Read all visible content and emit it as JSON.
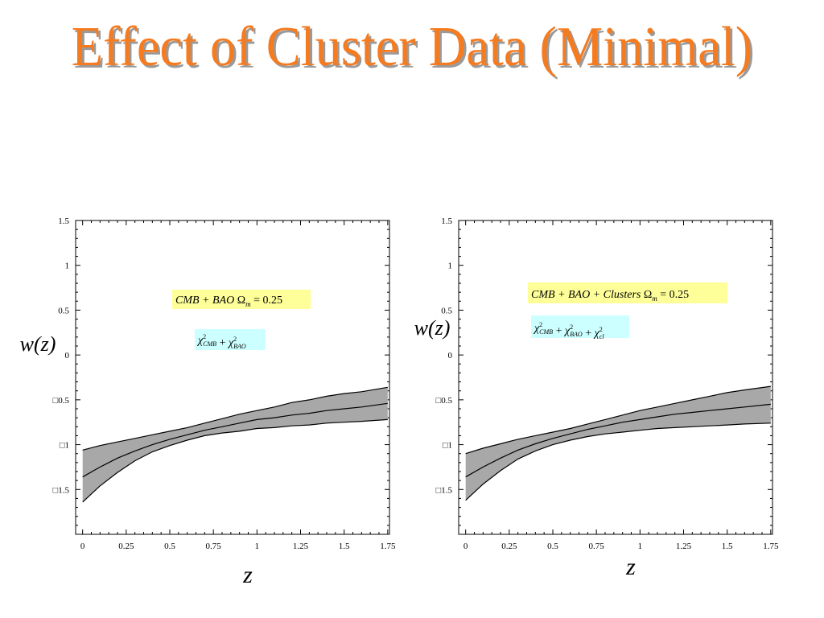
{
  "slide": {
    "title": "Effect of Cluster Data (Minimal)"
  },
  "colors": {
    "title": "#f57b20",
    "title_shadow": "#9a9a9a",
    "band_fill": "#a8a8a8",
    "label_yellow": "#ffff99",
    "label_cyan": "#ccffff"
  },
  "chart_data": [
    {
      "type": "area",
      "xlabel": "z",
      "ylabel": "w(z)",
      "xlim": [
        -0.04,
        1.76
      ],
      "ylim": [
        -2.0,
        1.5
      ],
      "xticks": [
        0,
        0.25,
        0.5,
        0.75,
        1,
        1.25,
        1.5,
        1.75
      ],
      "xtick_labels": [
        "0",
        "0.25",
        "0.5",
        "0.75",
        "1",
        "1.25",
        "1.5",
        "1.75"
      ],
      "yticks": [
        1.5,
        1,
        0.5,
        0,
        -0.5,
        -1,
        -1.5
      ],
      "ytick_labels": [
        "1.5",
        "1",
        "0.5",
        "0",
        "□0.5",
        "□1",
        "□1.5"
      ],
      "grid": false,
      "annotations": {
        "prior": {
          "main": "CMB + BAO",
          "omega": "Ω",
          "omega_sub": "m",
          "value": " = 0.25"
        },
        "chi": [
          {
            "sym": "χ",
            "sup": "2",
            "sub": "CMB"
          },
          {
            "sym": "χ",
            "sup": "2",
            "sub": "BAO"
          }
        ]
      },
      "x": [
        0,
        0.1,
        0.2,
        0.3,
        0.4,
        0.5,
        0.6,
        0.7,
        0.8,
        0.9,
        1.0,
        1.1,
        1.2,
        1.3,
        1.4,
        1.5,
        1.6,
        1.75
      ],
      "series": [
        {
          "role": "upper",
          "values": [
            -1.06,
            -1.01,
            -0.97,
            -0.93,
            -0.89,
            -0.85,
            -0.81,
            -0.76,
            -0.71,
            -0.66,
            -0.62,
            -0.58,
            -0.53,
            -0.5,
            -0.46,
            -0.43,
            -0.41,
            -0.36
          ]
        },
        {
          "role": "best-fit",
          "values": [
            -1.36,
            -1.25,
            -1.15,
            -1.07,
            -1.0,
            -0.94,
            -0.89,
            -0.84,
            -0.8,
            -0.76,
            -0.72,
            -0.7,
            -0.67,
            -0.65,
            -0.62,
            -0.6,
            -0.58,
            -0.54
          ]
        },
        {
          "role": "lower",
          "values": [
            -1.64,
            -1.46,
            -1.31,
            -1.18,
            -1.08,
            -1.01,
            -0.95,
            -0.9,
            -0.87,
            -0.85,
            -0.82,
            -0.81,
            -0.79,
            -0.78,
            -0.76,
            -0.75,
            -0.74,
            -0.72
          ]
        }
      ]
    },
    {
      "type": "area",
      "xlabel": "z",
      "ylabel": "w(z)",
      "xlim": [
        -0.04,
        1.76
      ],
      "ylim": [
        -2.0,
        1.5
      ],
      "xticks": [
        0,
        0.25,
        0.5,
        0.75,
        1,
        1.25,
        1.5,
        1.75
      ],
      "xtick_labels": [
        "0",
        "0.25",
        "0.5",
        "0.75",
        "1",
        "1.25",
        "1.5",
        "1.75"
      ],
      "yticks": [
        1.5,
        1,
        0.5,
        0,
        -0.5,
        -1,
        -1.5
      ],
      "ytick_labels": [
        "1.5",
        "1",
        "0.5",
        "0",
        "□0.5",
        "□1",
        "□1.5"
      ],
      "grid": false,
      "annotations": {
        "prior": {
          "main": "CMB + BAO + Clusters",
          "omega": "Ω",
          "omega_sub": "m",
          "value": " = 0.25"
        },
        "chi": [
          {
            "sym": "χ",
            "sup": "2",
            "sub": "CMB"
          },
          {
            "sym": "χ",
            "sup": "2",
            "sub": "BAO"
          },
          {
            "sym": "χ",
            "sup": "2",
            "sub": "cl"
          }
        ]
      },
      "x": [
        0,
        0.1,
        0.2,
        0.3,
        0.4,
        0.5,
        0.6,
        0.7,
        0.8,
        0.9,
        1.0,
        1.1,
        1.2,
        1.3,
        1.4,
        1.5,
        1.6,
        1.75
      ],
      "series": [
        {
          "role": "upper",
          "values": [
            -1.1,
            -1.04,
            -0.99,
            -0.94,
            -0.9,
            -0.86,
            -0.82,
            -0.77,
            -0.72,
            -0.67,
            -0.62,
            -0.58,
            -0.54,
            -0.5,
            -0.46,
            -0.42,
            -0.39,
            -0.35
          ]
        },
        {
          "role": "best-fit",
          "values": [
            -1.36,
            -1.25,
            -1.15,
            -1.06,
            -0.99,
            -0.93,
            -0.88,
            -0.83,
            -0.79,
            -0.75,
            -0.72,
            -0.69,
            -0.66,
            -0.64,
            -0.62,
            -0.6,
            -0.58,
            -0.55
          ]
        },
        {
          "role": "lower",
          "values": [
            -1.62,
            -1.44,
            -1.29,
            -1.16,
            -1.07,
            -1.0,
            -0.95,
            -0.91,
            -0.88,
            -0.86,
            -0.84,
            -0.82,
            -0.81,
            -0.8,
            -0.79,
            -0.78,
            -0.77,
            -0.76
          ]
        }
      ]
    }
  ]
}
